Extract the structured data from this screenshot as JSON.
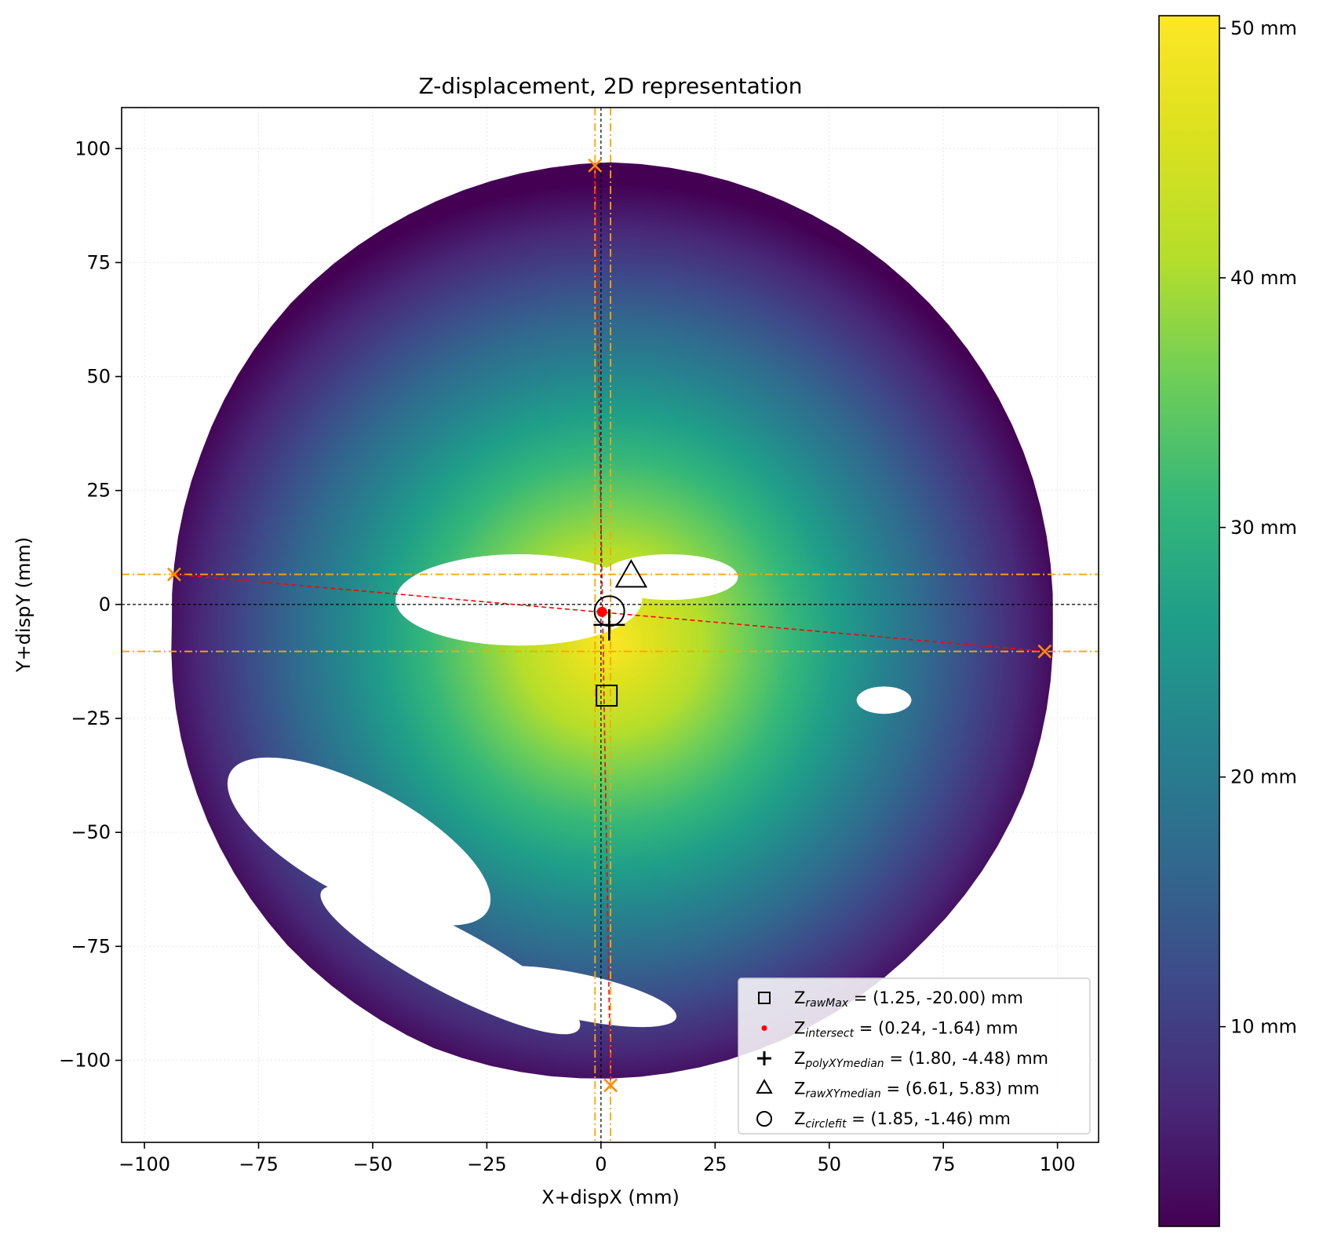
{
  "chart_data": {
    "type": "scatter",
    "title": "Z-displacement, 2D representation",
    "xlabel": "X+dispX (mm)",
    "ylabel": "Y+dispY (mm)",
    "xlim": [
      -105,
      109
    ],
    "ylim": [
      -118,
      109
    ],
    "xticks": [
      -100,
      -75,
      -50,
      -25,
      0,
      25,
      50,
      75,
      100
    ],
    "xtick_labels": [
      "−100",
      "−75",
      "−50",
      "−25",
      "0",
      "25",
      "50",
      "75",
      "100"
    ],
    "yticks": [
      -100,
      -75,
      -50,
      -25,
      0,
      25,
      50,
      75,
      100
    ],
    "ytick_labels": [
      "−100",
      "−75",
      "−50",
      "−25",
      "0",
      "25",
      "50",
      "75",
      "100"
    ],
    "grid": true,
    "legend_position": "lower-right",
    "colormap": "viridis",
    "colorbar": {
      "range": [
        2,
        50.5
      ],
      "ticks": [
        10,
        20,
        30,
        40,
        50
      ],
      "tick_labels": [
        "10 mm",
        "20 mm",
        "30 mm",
        "40 mm",
        "50 mm"
      ]
    },
    "surface": {
      "center": [
        2,
        -4
      ],
      "peak": [
        2,
        -8
      ],
      "peak_value": 50.5,
      "edge_value": 3,
      "radius_mm": 100,
      "boundary_radius_mm": [
        97,
        98,
        99,
        100,
        101,
        100,
        99,
        97,
        96,
        98,
        100,
        101,
        100,
        99,
        98,
        98
      ],
      "holes": [
        {
          "kind": "ellipse",
          "center": [
            -18,
            1
          ],
          "radii": [
            27,
            10
          ]
        },
        {
          "kind": "ellipse",
          "center": [
            15,
            6
          ],
          "radii": [
            15,
            5
          ]
        },
        {
          "kind": "ellipse",
          "center": [
            -53,
            -52
          ],
          "radii": [
            32,
            12
          ],
          "angle_deg": -28
        },
        {
          "kind": "ellipse",
          "center": [
            -33,
            -78
          ],
          "radii": [
            32,
            7
          ],
          "angle_deg": -28
        },
        {
          "kind": "ellipse",
          "center": [
            -5,
            -86
          ],
          "radii": [
            22,
            5
          ],
          "angle_deg": -12
        },
        {
          "kind": "ellipse",
          "center": [
            62,
            -21
          ],
          "radii": [
            6,
            3
          ]
        }
      ]
    },
    "reference_lines": [
      {
        "orientation": "vertical",
        "value": -1.3,
        "style": "dash-dot",
        "color": "#ffa500"
      },
      {
        "orientation": "vertical",
        "value": 2.1,
        "style": "dash-dot",
        "color": "#ffa500"
      },
      {
        "orientation": "horizontal",
        "value": 6.6,
        "style": "dash-dot",
        "color": "#ffa500"
      },
      {
        "orientation": "horizontal",
        "value": -10.3,
        "style": "dash-dot",
        "color": "#ffa500"
      },
      {
        "orientation": "vertical",
        "value": 0,
        "style": "dashed",
        "color": "#000000"
      },
      {
        "orientation": "horizontal",
        "value": 0,
        "style": "dashed",
        "color": "#000000"
      }
    ],
    "edge_points": [
      {
        "x": -1.3,
        "y": 96.3
      },
      {
        "x": 2.1,
        "y": -105.5
      },
      {
        "x": -93.5,
        "y": 6.6
      },
      {
        "x": 97.2,
        "y": -10.3
      }
    ],
    "intersect_lines": [
      {
        "from": [
          -93.5,
          6.6
        ],
        "to": [
          97.2,
          -10.3
        ]
      },
      {
        "from": [
          -1.3,
          96.3
        ],
        "to": [
          2.1,
          -105.5
        ]
      }
    ],
    "colors": {
      "edge_point": "#ff8c00",
      "intersect_line": "#ff0000",
      "intersect_marker": "#ff0000",
      "marker": "#000000"
    },
    "markers": [
      {
        "name": "Z_rawMax",
        "symbol": "square",
        "x": 1.25,
        "y": -20.0,
        "label_main": "Z",
        "label_sub": "rawMax",
        "label_rest": " = (1.25, -20.00) mm"
      },
      {
        "name": "Z_intersect",
        "symbol": "dot",
        "x": 0.24,
        "y": -1.64,
        "label_main": "Z",
        "label_sub": "intersect",
        "label_rest": " = (0.24, -1.64) mm"
      },
      {
        "name": "Z_polyXYmedian",
        "symbol": "plus",
        "x": 1.8,
        "y": -4.48,
        "label_main": "Z",
        "label_sub": "polyXYmedian",
        "label_rest": " = (1.80, -4.48) mm"
      },
      {
        "name": "Z_rawXYmedian",
        "symbol": "triangle",
        "x": 6.61,
        "y": 5.83,
        "label_main": "Z",
        "label_sub": "rawXYmedian",
        "label_rest": " = (6.61, 5.83) mm"
      },
      {
        "name": "Z_circlefit",
        "symbol": "circle",
        "x": 1.85,
        "y": -1.46,
        "label_main": "Z",
        "label_sub": "circlefit",
        "label_rest": " = (1.85, -1.46) mm"
      }
    ]
  }
}
